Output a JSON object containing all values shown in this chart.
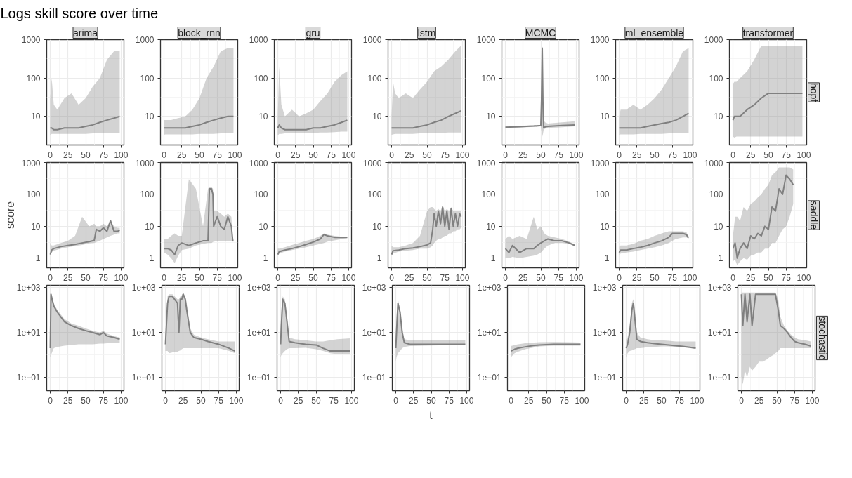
{
  "chart_data": [
    {
      "type": "other",
      "title": "Logs skill score over time"
    },
    {
      "type": "line",
      "title": "arima",
      "log": true,
      "grid": true,
      "xlim": [
        -5,
        104
      ],
      "xticks": [
        0,
        25,
        50,
        75,
        100
      ],
      "ylim": [
        1.8,
        1000
      ],
      "yticks": [
        10,
        100,
        1000
      ],
      "series": [
        {
          "color": "#808080",
          "x": [
            0,
            2,
            5,
            10,
            20,
            30,
            40,
            50,
            60,
            70,
            80,
            90,
            98
          ],
          "values": [
            5,
            5,
            4.5,
            4.5,
            5,
            5,
            5,
            5.5,
            6,
            7,
            8,
            9,
            10
          ],
          "lower": [
            3.2,
            3.5,
            3.5,
            3.5,
            3.5,
            3.5,
            3.5,
            3.5,
            3.6,
            3.6,
            3.6,
            3.7,
            3.7
          ],
          "upper": [
            30,
            100,
            20,
            15,
            30,
            40,
            20,
            30,
            60,
            100,
            300,
            500,
            500
          ]
        }
      ]
    },
    {
      "type": "line",
      "title": "block_rnn",
      "log": true,
      "grid": true,
      "xlim": [
        -5,
        104
      ],
      "xticks": [
        0,
        25,
        50,
        75,
        100
      ],
      "ylim": [
        1.8,
        1000
      ],
      "yticks": [
        10,
        100,
        1000
      ],
      "series": [
        {
          "color": "#808080",
          "x": [
            0,
            2,
            5,
            10,
            20,
            30,
            40,
            50,
            60,
            70,
            80,
            90,
            98
          ],
          "values": [
            5,
            5,
            5,
            5,
            5,
            5,
            5.5,
            6,
            7,
            8,
            9,
            10,
            10
          ],
          "lower": [
            3.3,
            3.4,
            3.4,
            3.4,
            3.4,
            3.4,
            3.4,
            3.5,
            3.5,
            3.5,
            3.6,
            3.6,
            3.6
          ],
          "upper": [
            8,
            8,
            8,
            8,
            9,
            10,
            15,
            30,
            100,
            200,
            500,
            600,
            600
          ]
        }
      ]
    },
    {
      "type": "line",
      "title": "gru",
      "log": true,
      "grid": true,
      "xlim": [
        -5,
        104
      ],
      "xticks": [
        0,
        25,
        50,
        75,
        100
      ],
      "ylim": [
        1.8,
        1000
      ],
      "yticks": [
        10,
        100,
        1000
      ],
      "series": [
        {
          "color": "#808080",
          "x": [
            0,
            2,
            5,
            10,
            20,
            30,
            40,
            50,
            60,
            70,
            80,
            90,
            98
          ],
          "values": [
            5,
            6,
            5,
            4.5,
            4.5,
            4.5,
            4.5,
            5,
            5,
            5.5,
            6,
            7,
            8
          ],
          "lower": [
            3.2,
            3.5,
            3.5,
            3.6,
            3.6,
            3.6,
            3.6,
            3.7,
            3.8,
            3.8,
            3.9,
            4,
            4
          ],
          "upper": [
            10,
            200,
            20,
            10,
            15,
            10,
            12,
            15,
            25,
            40,
            80,
            120,
            150
          ]
        }
      ]
    },
    {
      "type": "line",
      "title": "lstm",
      "log": true,
      "grid": true,
      "xlim": [
        -5,
        104
      ],
      "xticks": [
        0,
        25,
        50,
        75,
        100
      ],
      "ylim": [
        1.8,
        1000
      ],
      "yticks": [
        10,
        100,
        1000
      ],
      "series": [
        {
          "color": "#808080",
          "x": [
            0,
            2,
            5,
            10,
            20,
            30,
            40,
            50,
            60,
            70,
            80,
            90,
            98
          ],
          "values": [
            5,
            5,
            5,
            5,
            5,
            5,
            5.5,
            6,
            7,
            8,
            10,
            12,
            14
          ],
          "lower": [
            3.3,
            3.4,
            3.5,
            3.5,
            3.5,
            3.5,
            3.6,
            3.6,
            3.7,
            3.7,
            3.8,
            3.8,
            3.8
          ],
          "upper": [
            10,
            80,
            40,
            30,
            40,
            30,
            50,
            80,
            150,
            200,
            300,
            500,
            700
          ]
        }
      ]
    },
    {
      "type": "line",
      "title": "MCMC",
      "log": true,
      "grid": true,
      "xlim": [
        -5,
        104
      ],
      "xticks": [
        0,
        25,
        50,
        75,
        100
      ],
      "ylim": [
        1.8,
        1000
      ],
      "yticks": [
        10,
        100,
        1000
      ],
      "series": [
        {
          "color": "#808080",
          "x": [
            0,
            20,
            40,
            50,
            51,
            52,
            53,
            54,
            56,
            60,
            80,
            98
          ],
          "values": [
            5.2,
            5.4,
            5.6,
            5.8,
            30,
            600,
            20,
            5,
            5.3,
            5.5,
            5.8,
            6
          ],
          "lower": [
            5,
            5.1,
            5.3,
            5.5,
            4,
            3,
            3.5,
            4.5,
            4.8,
            5,
            5.2,
            5.5
          ],
          "upper": [
            5.5,
            5.7,
            5.9,
            6,
            50,
            700,
            40,
            8,
            7,
            6.5,
            7,
            7.5
          ]
        }
      ]
    },
    {
      "type": "line",
      "title": "ml_ensemble",
      "log": true,
      "grid": true,
      "xlim": [
        -5,
        104
      ],
      "xticks": [
        0,
        25,
        50,
        75,
        100
      ],
      "ylim": [
        1.8,
        1000
      ],
      "yticks": [
        10,
        100,
        1000
      ],
      "series": [
        {
          "color": "#808080",
          "x": [
            0,
            2,
            5,
            10,
            20,
            30,
            40,
            50,
            60,
            70,
            80,
            90,
            98
          ],
          "values": [
            5,
            5,
            5,
            5,
            5,
            5,
            5.5,
            6,
            6.5,
            7,
            8,
            10,
            12
          ],
          "lower": [
            3.3,
            3.4,
            3.4,
            3.4,
            3.4,
            3.5,
            3.5,
            3.5,
            3.5,
            3.6,
            3.6,
            3.7,
            3.7
          ],
          "upper": [
            10,
            15,
            15,
            15,
            20,
            15,
            20,
            30,
            50,
            100,
            200,
            500,
            600
          ]
        }
      ]
    },
    {
      "type": "line",
      "title": "transformer",
      "y2label": "hopf",
      "log": true,
      "grid": true,
      "xlim": [
        -5,
        104
      ],
      "xticks": [
        0,
        25,
        50,
        75,
        100
      ],
      "ylim": [
        1.8,
        1000
      ],
      "yticks": [
        10,
        100,
        1000
      ],
      "series": [
        {
          "color": "#808080",
          "x": [
            0,
            2,
            5,
            10,
            20,
            30,
            40,
            50,
            60,
            70,
            80,
            90,
            98
          ],
          "values": [
            8,
            10,
            10,
            10,
            15,
            20,
            30,
            40,
            40,
            40,
            40,
            40,
            40
          ],
          "lower": [
            3,
            2.8,
            3,
            3,
            3,
            3,
            3,
            3,
            3,
            3,
            3,
            3,
            3
          ],
          "upper": [
            70,
            80,
            80,
            100,
            150,
            300,
            700,
            700,
            700,
            700,
            700,
            700,
            700
          ]
        }
      ]
    },
    {
      "type": "line",
      "ylabel": "score",
      "log": true,
      "grid": true,
      "xlim": [
        -5,
        104
      ],
      "xticks": [
        0,
        25,
        50,
        75,
        100
      ],
      "ylim": [
        0.5,
        1000
      ],
      "yticks": [
        1,
        10,
        100,
        1000
      ],
      "series": [
        {
          "color": "#808080",
          "x": [
            0,
            2,
            5,
            15,
            25,
            35,
            45,
            55,
            62,
            65,
            70,
            75,
            80,
            85,
            90,
            95,
            98
          ],
          "values": [
            1.3,
            1.8,
            2,
            2.3,
            2.5,
            2.7,
            3,
            3.3,
            3.6,
            8,
            7,
            9,
            7,
            15,
            7,
            7,
            7.5
          ],
          "lower": [
            1.2,
            1.5,
            1.7,
            2,
            2.2,
            2.4,
            2.6,
            2.9,
            3,
            3.2,
            3.5,
            4,
            4.5,
            5,
            5.5,
            6,
            6
          ],
          "upper": [
            3,
            2.5,
            2.5,
            3,
            3.5,
            5,
            20,
            10,
            12,
            10,
            10,
            12,
            10,
            15,
            10,
            9,
            9
          ]
        }
      ]
    },
    {
      "type": "line",
      "log": true,
      "grid": true,
      "xlim": [
        -5,
        104
      ],
      "xticks": [
        0,
        25,
        50,
        75,
        100
      ],
      "ylim": [
        0.5,
        1000
      ],
      "yticks": [
        1,
        10,
        100,
        1000
      ],
      "series": [
        {
          "color": "#808080",
          "x": [
            0,
            5,
            10,
            15,
            20,
            25,
            35,
            45,
            55,
            62,
            64,
            67,
            69,
            70,
            75,
            80,
            85,
            90,
            95,
            97,
            98
          ],
          "values": [
            2,
            2,
            1.8,
            1.3,
            2.5,
            3,
            2.5,
            3,
            3.5,
            3.5,
            150,
            150,
            100,
            10,
            20,
            10,
            8,
            20,
            10,
            3.5,
            3.5
          ],
          "lower": [
            1.5,
            1.3,
            1,
            0.7,
            1.2,
            1.8,
            2,
            2.5,
            2.8,
            3,
            3,
            3,
            3.2,
            3.3,
            3.4,
            3.5,
            3.5,
            3.5,
            3.5,
            3.3,
            3.3
          ],
          "upper": [
            4,
            4,
            5,
            6,
            5,
            5,
            300,
            150,
            10,
            150,
            170,
            170,
            150,
            30,
            30,
            25,
            20,
            25,
            20,
            4,
            4
          ]
        }
      ]
    },
    {
      "type": "line",
      "log": true,
      "grid": true,
      "xlim": [
        -5,
        104
      ],
      "xticks": [
        0,
        25,
        50,
        75,
        100
      ],
      "ylim": [
        0.5,
        1000
      ],
      "yticks": [
        1,
        10,
        100,
        1000
      ],
      "series": [
        {
          "color": "#808080",
          "x": [
            0,
            2,
            10,
            20,
            30,
            40,
            50,
            60,
            65,
            70,
            80,
            90,
            98
          ],
          "values": [
            1.3,
            1.6,
            1.8,
            2,
            2.3,
            2.7,
            3.2,
            4,
            5.5,
            5,
            4.5,
            4.5,
            4.5
          ],
          "lower": [
            1.2,
            1.4,
            1.6,
            1.8,
            2,
            2.2,
            2.5,
            2.8,
            3,
            3.3,
            3.6,
            4,
            4.3
          ],
          "upper": [
            2,
            2,
            2.2,
            2.6,
            3,
            3.5,
            4,
            5,
            6,
            5.5,
            5,
            4.7,
            4.6
          ]
        }
      ]
    },
    {
      "type": "line",
      "log": true,
      "grid": true,
      "xlim": [
        -5,
        104
      ],
      "xticks": [
        0,
        25,
        50,
        75,
        100
      ],
      "ylim": [
        0.5,
        1000
      ],
      "yticks": [
        1,
        10,
        100,
        1000
      ],
      "series": [
        {
          "color": "#808080",
          "x": [
            0,
            2,
            10,
            20,
            30,
            40,
            50,
            55,
            58,
            60,
            63,
            66,
            69,
            72,
            75,
            78,
            81,
            84,
            87,
            90,
            93,
            96,
            98
          ],
          "values": [
            1.3,
            1.7,
            1.8,
            2,
            2.1,
            2.3,
            2.6,
            3,
            8,
            25,
            10,
            30,
            12,
            40,
            10,
            30,
            8,
            35,
            10,
            25,
            10,
            25,
            20
          ],
          "lower": [
            1.2,
            1.4,
            1.6,
            1.7,
            1.8,
            2,
            2,
            2.2,
            2.5,
            3,
            3.5,
            4,
            4,
            4.5,
            5,
            5,
            6,
            6,
            7,
            7,
            8,
            8,
            9
          ],
          "upper": [
            2.5,
            2.2,
            2.2,
            2.5,
            3,
            5,
            30,
            40,
            40,
            35,
            30,
            35,
            30,
            45,
            30,
            35,
            30,
            40,
            30,
            30,
            30,
            30,
            30
          ]
        }
      ]
    },
    {
      "type": "line",
      "log": true,
      "grid": true,
      "xlim": [
        -5,
        104
      ],
      "xticks": [
        0,
        25,
        50,
        75,
        100
      ],
      "ylim": [
        0.5,
        1000
      ],
      "yticks": [
        1,
        10,
        100,
        1000
      ],
      "series": [
        {
          "color": "#808080",
          "x": [
            0,
            5,
            10,
            20,
            30,
            40,
            45,
            50,
            55,
            60,
            70,
            80,
            90,
            98
          ],
          "values": [
            2,
            1.5,
            2.5,
            1.5,
            2,
            2,
            2.5,
            3,
            3.5,
            4,
            3.5,
            3.5,
            3,
            2.5
          ],
          "lower": [
            1,
            1,
            1.1,
            1,
            1.1,
            1.2,
            1.3,
            1.5,
            2,
            2.5,
            3,
            3,
            2.8,
            2.4
          ],
          "upper": [
            4,
            5,
            4,
            5,
            4,
            20,
            8,
            10,
            6,
            5,
            4.5,
            4,
            3.3,
            2.7
          ]
        }
      ]
    },
    {
      "type": "line",
      "log": true,
      "grid": true,
      "xlim": [
        -5,
        104
      ],
      "xticks": [
        0,
        25,
        50,
        75,
        100
      ],
      "ylim": [
        0.5,
        1000
      ],
      "yticks": [
        1,
        10,
        100,
        1000
      ],
      "series": [
        {
          "color": "#808080",
          "x": [
            0,
            2,
            10,
            20,
            30,
            40,
            50,
            60,
            70,
            75,
            80,
            90,
            95,
            97,
            98
          ],
          "values": [
            1.5,
            1.8,
            1.8,
            2,
            2.2,
            2.5,
            3,
            3.5,
            4.5,
            6,
            6,
            6,
            5.5,
            4.5,
            4.5
          ],
          "lower": [
            1.3,
            1.4,
            1.5,
            1.6,
            1.8,
            2,
            2.2,
            2.5,
            3,
            3.5,
            4,
            4.5,
            4.5,
            4.3,
            4.3
          ],
          "upper": [
            2.3,
            2.5,
            2.5,
            2.8,
            3.5,
            4,
            5,
            6,
            7,
            7,
            7,
            7,
            6.5,
            5,
            5
          ]
        }
      ]
    },
    {
      "type": "line",
      "y2label": "saddle",
      "log": true,
      "grid": true,
      "xlim": [
        -5,
        104
      ],
      "xticks": [
        0,
        25,
        50,
        75,
        100
      ],
      "ylim": [
        0.5,
        1000
      ],
      "yticks": [
        1,
        10,
        100,
        1000
      ],
      "series": [
        {
          "color": "#808080",
          "x": [
            0,
            3,
            6,
            10,
            15,
            20,
            25,
            30,
            35,
            40,
            45,
            50,
            55,
            60,
            65,
            70,
            75,
            80,
            85
          ],
          "values": [
            2,
            3,
            1,
            2,
            3,
            2,
            5,
            4,
            6,
            5,
            10,
            8,
            40,
            30,
            150,
            100,
            400,
            300,
            200
          ],
          "lower": [
            0.8,
            0.9,
            0.6,
            0.8,
            1,
            0.9,
            1.2,
            1.3,
            1.5,
            1.5,
            2,
            2,
            3,
            3,
            5,
            8,
            10,
            20,
            50
          ],
          "upper": [
            5,
            20,
            20,
            15,
            40,
            30,
            50,
            60,
            80,
            100,
            150,
            200,
            400,
            500,
            700,
            700,
            700,
            700,
            600
          ]
        }
      ]
    },
    {
      "type": "line",
      "log": true,
      "grid": true,
      "xlim": [
        -5,
        104
      ],
      "xticks": [
        0,
        25,
        50,
        75,
        100
      ],
      "ylim": [
        0.026,
        1250
      ],
      "yticks": [
        {
          "value": 0.1,
          "label": "1e−01"
        },
        {
          "value": 10,
          "label": "1e+01"
        },
        {
          "value": 1000,
          "label": "1e+03"
        }
      ],
      "series": [
        {
          "color": "#808080",
          "x": [
            0,
            1,
            5,
            10,
            20,
            30,
            40,
            50,
            60,
            70,
            75,
            80,
            90,
            98
          ],
          "values": [
            2,
            500,
            150,
            80,
            30,
            20,
            15,
            12,
            10,
            8,
            10,
            7,
            6,
            5
          ],
          "lower": [
            0.8,
            1,
            2,
            2.3,
            2.6,
            2.8,
            3,
            3,
            3,
            3.2,
            3.2,
            3.3,
            3.4,
            3.5
          ],
          "upper": [
            500,
            600,
            200,
            100,
            40,
            25,
            20,
            15,
            12,
            10,
            12,
            9,
            7,
            6
          ]
        }
      ]
    },
    {
      "type": "line",
      "log": true,
      "grid": true,
      "xlim": [
        -5,
        104
      ],
      "xticks": [
        0,
        25,
        50,
        75,
        100
      ],
      "ylim": [
        0.026,
        1250
      ],
      "yticks": [
        {
          "value": 0.1,
          "label": "1e−01"
        },
        {
          "value": 10,
          "label": "1e+01"
        },
        {
          "value": 1000,
          "label": "1e+03"
        }
      ],
      "series": [
        {
          "color": "#808080",
          "x": [
            0,
            3,
            5,
            10,
            17,
            19,
            21,
            23,
            25,
            28,
            30,
            35,
            40,
            50,
            60,
            75,
            90,
            98
          ],
          "values": [
            3,
            200,
            400,
            400,
            200,
            10,
            300,
            300,
            500,
            300,
            100,
            10,
            6,
            5,
            4,
            3,
            2,
            1.5
          ],
          "lower": [
            1.5,
            1.5,
            1.2,
            1.3,
            1.4,
            1.5,
            1.6,
            1.8,
            2,
            2,
            2,
            2,
            2,
            2,
            2,
            2,
            1.5,
            1.2
          ],
          "upper": [
            10,
            400,
            500,
            500,
            300,
            300,
            400,
            450,
            600,
            400,
            200,
            15,
            8,
            6,
            5,
            4,
            4,
            4
          ]
        }
      ]
    },
    {
      "type": "line",
      "log": true,
      "grid": true,
      "xlim": [
        -5,
        104
      ],
      "xticks": [
        0,
        25,
        50,
        75,
        100
      ],
      "ylim": [
        0.026,
        1250
      ],
      "yticks": [
        {
          "value": 0.1,
          "label": "1e−01"
        },
        {
          "value": 10,
          "label": "1e+01"
        },
        {
          "value": 1000,
          "label": "1e+03"
        }
      ],
      "series": [
        {
          "color": "#808080",
          "x": [
            0,
            1,
            3,
            6,
            9,
            12,
            20,
            35,
            50,
            60,
            70,
            80,
            98
          ],
          "values": [
            3,
            20,
            300,
            200,
            30,
            4,
            3.5,
            3,
            2.8,
            2,
            1.5,
            1.5,
            1.5
          ],
          "lower": [
            0.8,
            1,
            1.2,
            1.5,
            1.8,
            2,
            2,
            2.1,
            1.8,
            1.5,
            1.2,
            1.1,
            1.1
          ],
          "upper": [
            10,
            100,
            400,
            300,
            50,
            6,
            5,
            4.5,
            4,
            4,
            4.5,
            5,
            5.5
          ]
        }
      ]
    },
    {
      "type": "line",
      "xlabel": "t",
      "log": true,
      "grid": true,
      "xlim": [
        -5,
        104
      ],
      "xticks": [
        0,
        25,
        50,
        75,
        100
      ],
      "ylim": [
        0.026,
        1250
      ],
      "yticks": [
        {
          "value": 0.1,
          "label": "1e−01"
        },
        {
          "value": 10,
          "label": "1e+01"
        },
        {
          "value": 1000,
          "label": "1e+03"
        }
      ],
      "series": [
        {
          "color": "#808080",
          "x": [
            0,
            1,
            3,
            6,
            9,
            12,
            20,
            40,
            60,
            80,
            98
          ],
          "values": [
            2,
            10,
            200,
            80,
            10,
            3.5,
            3,
            3,
            3,
            3,
            3
          ],
          "lower": [
            0.5,
            0.8,
            1.2,
            1.5,
            2,
            2.3,
            2.5,
            2.6,
            2.7,
            2.7,
            2.7
          ],
          "upper": [
            10,
            50,
            300,
            100,
            15,
            5,
            4.5,
            4.5,
            4.5,
            4.5,
            4.5
          ]
        }
      ]
    },
    {
      "type": "line",
      "log": true,
      "grid": true,
      "xlim": [
        -5,
        104
      ],
      "xticks": [
        0,
        25,
        50,
        75,
        100
      ],
      "ylim": [
        0.026,
        1250
      ],
      "yticks": [
        {
          "value": 0.1,
          "label": "1e−01"
        },
        {
          "value": 10,
          "label": "1e+01"
        },
        {
          "value": 1000,
          "label": "1e+03"
        }
      ],
      "series": [
        {
          "color": "#808080",
          "x": [
            0,
            5,
            10,
            20,
            30,
            40,
            60,
            80,
            98
          ],
          "values": [
            1.5,
            1.8,
            2,
            2.3,
            2.6,
            2.8,
            3,
            3,
            3
          ],
          "lower": [
            0.8,
            1.2,
            1.4,
            1.8,
            2.1,
            2.4,
            2.6,
            2.6,
            2.6
          ],
          "upper": [
            2.5,
            2.8,
            3,
            3.3,
            3.5,
            3.7,
            3.8,
            3.7,
            3.6
          ]
        }
      ]
    },
    {
      "type": "line",
      "log": true,
      "grid": true,
      "xlim": [
        -5,
        104
      ],
      "xticks": [
        0,
        25,
        50,
        75,
        100
      ],
      "ylim": [
        0.026,
        1250
      ],
      "yticks": [
        {
          "value": 0.1,
          "label": "1e−01"
        },
        {
          "value": 10,
          "label": "1e+01"
        },
        {
          "value": 1000,
          "label": "1e+03"
        }
      ],
      "series": [
        {
          "color": "#808080",
          "x": [
            0,
            2,
            5,
            8,
            10,
            12,
            15,
            20,
            30,
            40,
            50,
            60,
            70,
            80,
            90,
            98
          ],
          "values": [
            2,
            3,
            10,
            100,
            200,
            50,
            5,
            4,
            3.5,
            3.2,
            3,
            2.8,
            2.6,
            2.4,
            2.2,
            2
          ],
          "lower": [
            0.8,
            1.2,
            1.5,
            1.6,
            1.7,
            1.8,
            2,
            2,
            2.2,
            2.3,
            2.4,
            2.4,
            2.3,
            2.2,
            2,
            1.9
          ],
          "upper": [
            5,
            6,
            20,
            200,
            300,
            150,
            10,
            6,
            5,
            4.5,
            4.5,
            4.3,
            4,
            4,
            4,
            4
          ]
        }
      ]
    },
    {
      "type": "line",
      "y2label": "stochastic",
      "log": true,
      "grid": true,
      "xlim": [
        -5,
        104
      ],
      "xticks": [
        0,
        25,
        50,
        75,
        100
      ],
      "ylim": [
        0.026,
        1250
      ],
      "yticks": [
        {
          "value": 0.1,
          "label": "1e−01"
        },
        {
          "value": 10,
          "label": "1e+01"
        },
        {
          "value": 1000,
          "label": "1e+03"
        }
      ],
      "series": [
        {
          "color": "#808080",
          "x": [
            0,
            2,
            5,
            8,
            12,
            15,
            20,
            25,
            30,
            35,
            40,
            45,
            48,
            52,
            55,
            60,
            65,
            70,
            75,
            80,
            90,
            98
          ],
          "values": [
            500,
            20,
            500,
            30,
            500,
            20,
            500,
            500,
            500,
            500,
            500,
            500,
            500,
            100,
            20,
            15,
            10,
            6,
            4,
            3.5,
            3,
            2.5
          ],
          "lower": [
            0.1,
            0.05,
            0.2,
            0.1,
            0.3,
            0.2,
            0.3,
            0.5,
            0.5,
            0.6,
            0.8,
            1,
            1.2,
            1.5,
            2,
            2,
            2,
            2,
            2,
            2,
            2,
            2
          ],
          "upper": [
            600,
            600,
            600,
            600,
            600,
            600,
            600,
            600,
            600,
            600,
            600,
            600,
            600,
            300,
            50,
            20,
            12,
            8,
            6,
            5,
            4.5,
            4
          ]
        }
      ]
    }
  ]
}
